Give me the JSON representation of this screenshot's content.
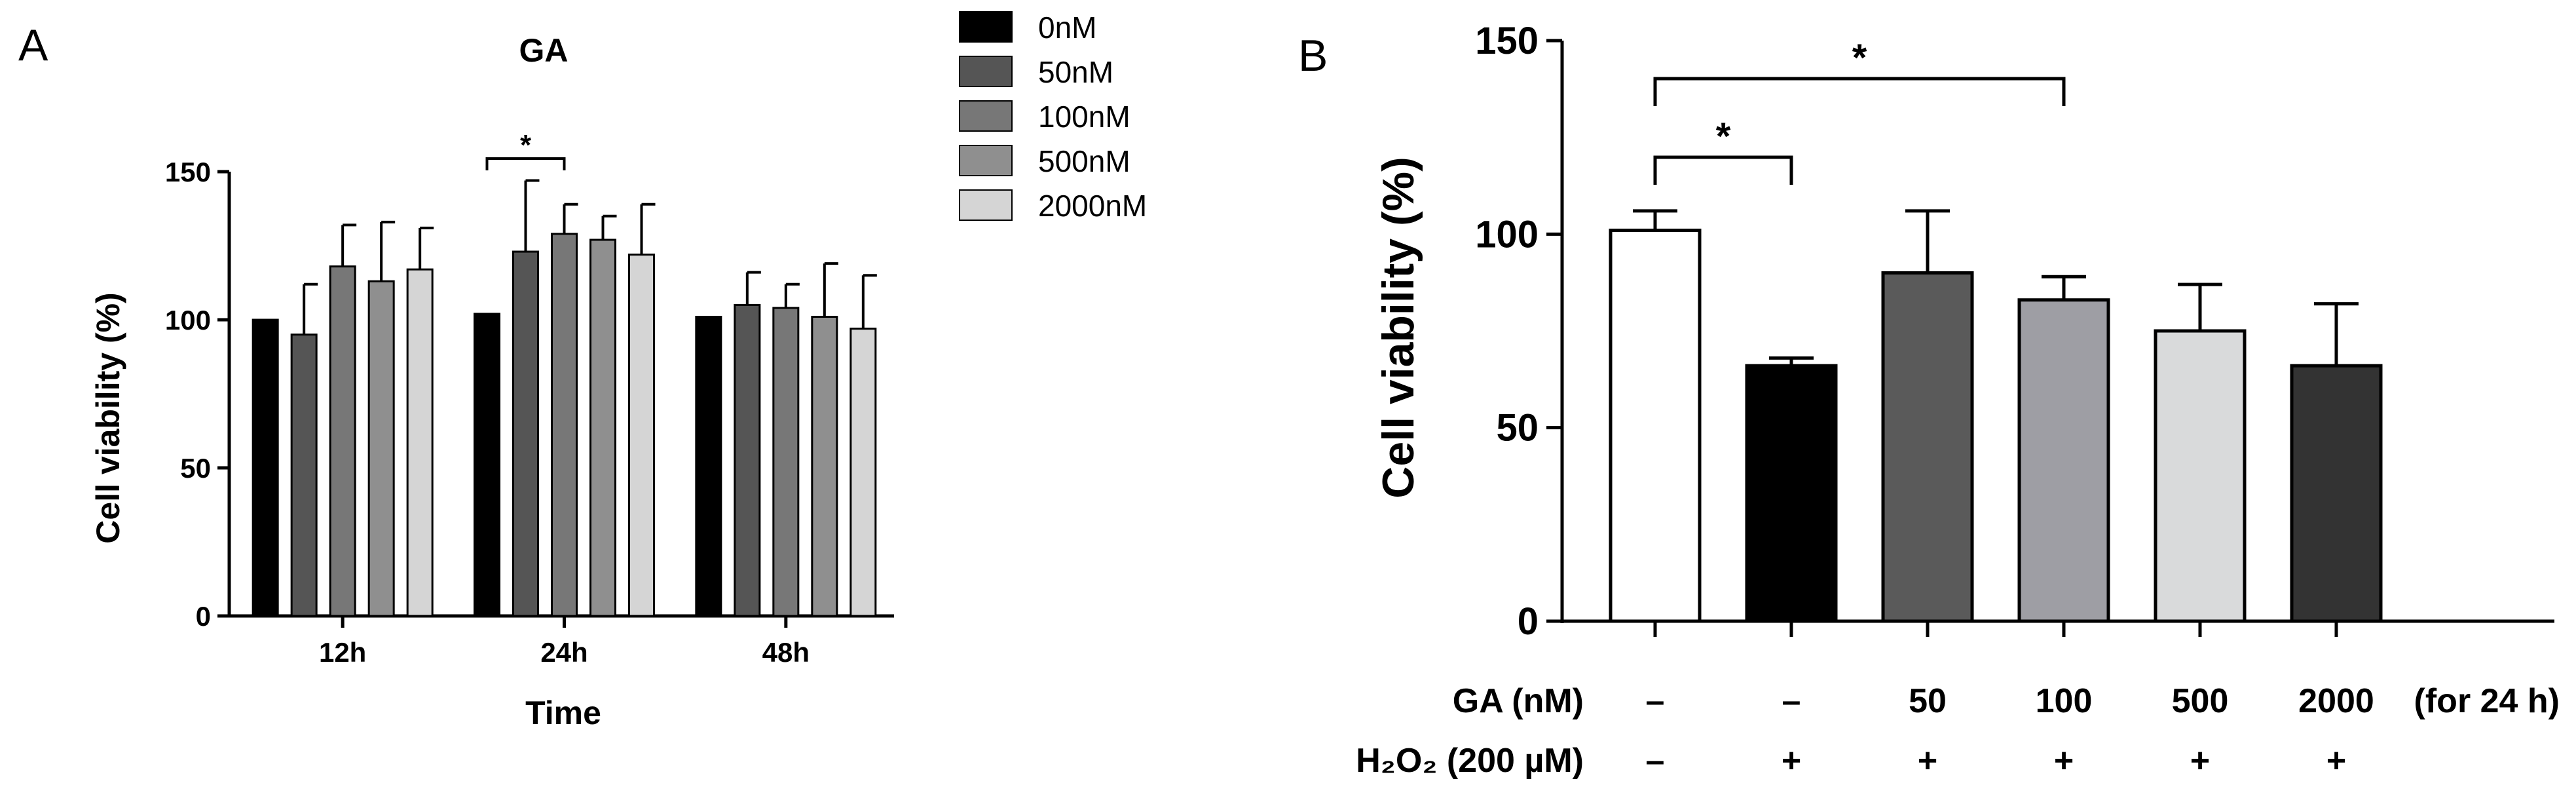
{
  "chart_data": [
    {
      "type": "bar",
      "panel_label": "A",
      "title": "GA",
      "xlabel": "Time",
      "ylabel": "Cell viability (%)",
      "ylim": [
        0,
        150
      ],
      "yticks": [
        "0",
        "50",
        "100",
        "150"
      ],
      "categories": [
        "12h",
        "24h",
        "48h"
      ],
      "legend_position": "right",
      "series": [
        {
          "name": "0nM",
          "color": "#000000",
          "values": [
            100,
            102,
            101
          ],
          "errors": [
            0,
            0,
            0
          ]
        },
        {
          "name": "50nM",
          "color": "#555555",
          "values": [
            95,
            123,
            105
          ],
          "errors": [
            17,
            24,
            11
          ]
        },
        {
          "name": "100nM",
          "color": "#777777",
          "values": [
            118,
            129,
            104
          ],
          "errors": [
            14,
            10,
            8
          ]
        },
        {
          "name": "500nM",
          "color": "#8f8f8f",
          "values": [
            113,
            127,
            101
          ],
          "errors": [
            20,
            8,
            18
          ]
        },
        {
          "name": "2000nM",
          "color": "#d5d5d5",
          "values": [
            117,
            122,
            97
          ],
          "errors": [
            14,
            17,
            18
          ]
        }
      ],
      "significance": [
        {
          "group": "24h",
          "from_series": 0,
          "to_series": 2,
          "label": "*"
        }
      ]
    },
    {
      "type": "bar",
      "panel_label": "B",
      "ylabel": "Cell viability (%)",
      "ylim": [
        0,
        150
      ],
      "yticks": [
        "0",
        "50",
        "100",
        "150"
      ],
      "bars": [
        {
          "value": 101,
          "error": 5,
          "color": "#ffffff"
        },
        {
          "value": 66,
          "error": 2,
          "color": "#000000"
        },
        {
          "value": 90,
          "error": 16,
          "color": "#5a5a5a"
        },
        {
          "value": 83,
          "error": 6,
          "color": "#9e9ea4"
        },
        {
          "value": 75,
          "error": 12,
          "color": "#d9dadb"
        },
        {
          "value": 66,
          "error": 16,
          "color": "#333333"
        }
      ],
      "significance": [
        {
          "from_bar": 0,
          "to_bar": 1,
          "label": "*"
        },
        {
          "from_bar": 0,
          "to_bar": 3,
          "label": "*"
        }
      ],
      "conditions": [
        {
          "label": "GA (nM)",
          "values": [
            "–",
            "–",
            "50",
            "100",
            "500",
            "2000"
          ],
          "suffix": "(for 24 h)"
        },
        {
          "label": "H₂O₂ (200 µM)",
          "values": [
            "–",
            "+",
            "+",
            "+",
            "+",
            "+"
          ]
        }
      ]
    }
  ]
}
